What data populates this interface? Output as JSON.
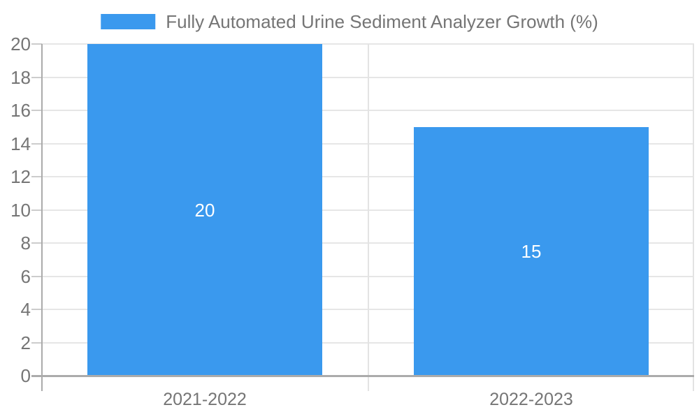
{
  "chart_data": {
    "type": "bar",
    "title": "",
    "xlabel": "",
    "ylabel": "",
    "categories": [
      "2021-2022",
      "2022-2023"
    ],
    "series": [
      {
        "name": "Fully Automated Urine Sediment Analyzer Growth (%)",
        "values": [
          20,
          15
        ]
      }
    ],
    "bar_value_labels": [
      "20",
      "15"
    ],
    "ylim": [
      0,
      20
    ],
    "yticks": [
      0,
      2,
      4,
      6,
      8,
      10,
      12,
      14,
      16,
      18,
      20
    ],
    "grid": true,
    "legend_position": "top"
  },
  "theme": {
    "bar_color": "#3A99EE",
    "text_color": "#757575",
    "bar_label_color": "#FFFFFF",
    "grid_color": "#E6E6E6",
    "divider_color": "#E3E3E3",
    "axis_color": "#ABABAB",
    "tick_color": "#CCCCCC",
    "background": "#FFFFFF"
  }
}
